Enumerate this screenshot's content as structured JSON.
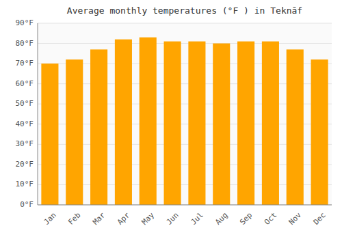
{
  "chart_data": {
    "type": "bar",
    "title": "Average monthly temperatures (°F ) in Teknāf",
    "categories": [
      "Jan",
      "Feb",
      "Mar",
      "Apr",
      "May",
      "Jun",
      "Jul",
      "Aug",
      "Sep",
      "Oct",
      "Nov",
      "Dec"
    ],
    "values": [
      70,
      72,
      77,
      82,
      83,
      81,
      81,
      80,
      81,
      81,
      77,
      72
    ],
    "color": "#FFA500",
    "ylim": [
      0,
      90
    ],
    "yticks": [
      {
        "value": 0,
        "label": "0°F"
      },
      {
        "value": 10,
        "label": "10°F"
      },
      {
        "value": 20,
        "label": "20°F"
      },
      {
        "value": 30,
        "label": "30°F"
      },
      {
        "value": 40,
        "label": "40°F"
      },
      {
        "value": 50,
        "label": "50°F"
      },
      {
        "value": 60,
        "label": "60°F"
      },
      {
        "value": 70,
        "label": "70°F"
      },
      {
        "value": 80,
        "label": "80°F"
      },
      {
        "value": 90,
        "label": "90°F"
      }
    ],
    "grid": true
  }
}
